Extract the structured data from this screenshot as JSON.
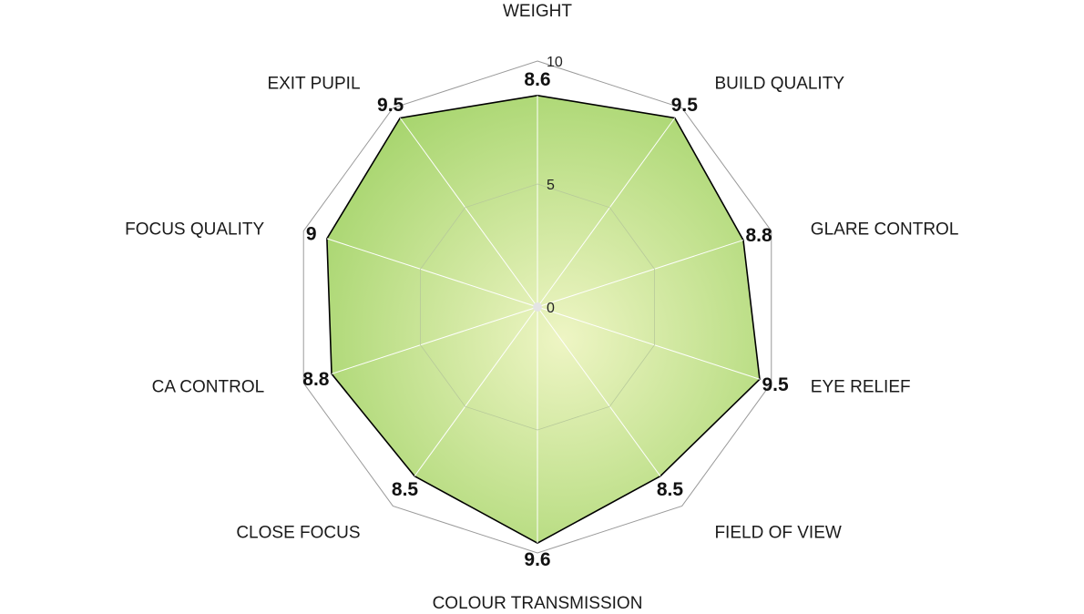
{
  "chart_data": {
    "type": "radar",
    "categories": [
      "WEIGHT",
      "BUILD QUALITY",
      "GLARE CONTROL",
      "EYE RELIEF",
      "FIELD OF VIEW",
      "COLOUR TRANSMISSION",
      "CLOSE FOCUS",
      "CA CONTROL",
      "FOCUS QUALITY",
      "EXIT PUPIL"
    ],
    "values": [
      8.6,
      9.5,
      8.8,
      9.5,
      8.5,
      9.6,
      8.5,
      8.8,
      9,
      9.5
    ],
    "value_labels": [
      "8.6",
      "9.5",
      "8.8",
      "9.5",
      "8.5",
      "9.6",
      "8.5",
      "8.8",
      "9",
      "9.5"
    ],
    "range": [
      0,
      10
    ],
    "ticks": [
      0,
      5,
      10
    ],
    "tick_labels": [
      "0",
      "5",
      "10"
    ],
    "grid": true,
    "legend": "none",
    "colors": {
      "fill_center": "#eef5c4",
      "fill_edge": "#a7d56e",
      "outline": "#000000",
      "grid": "#9a9a9a",
      "spoke": "#ffffff"
    }
  }
}
